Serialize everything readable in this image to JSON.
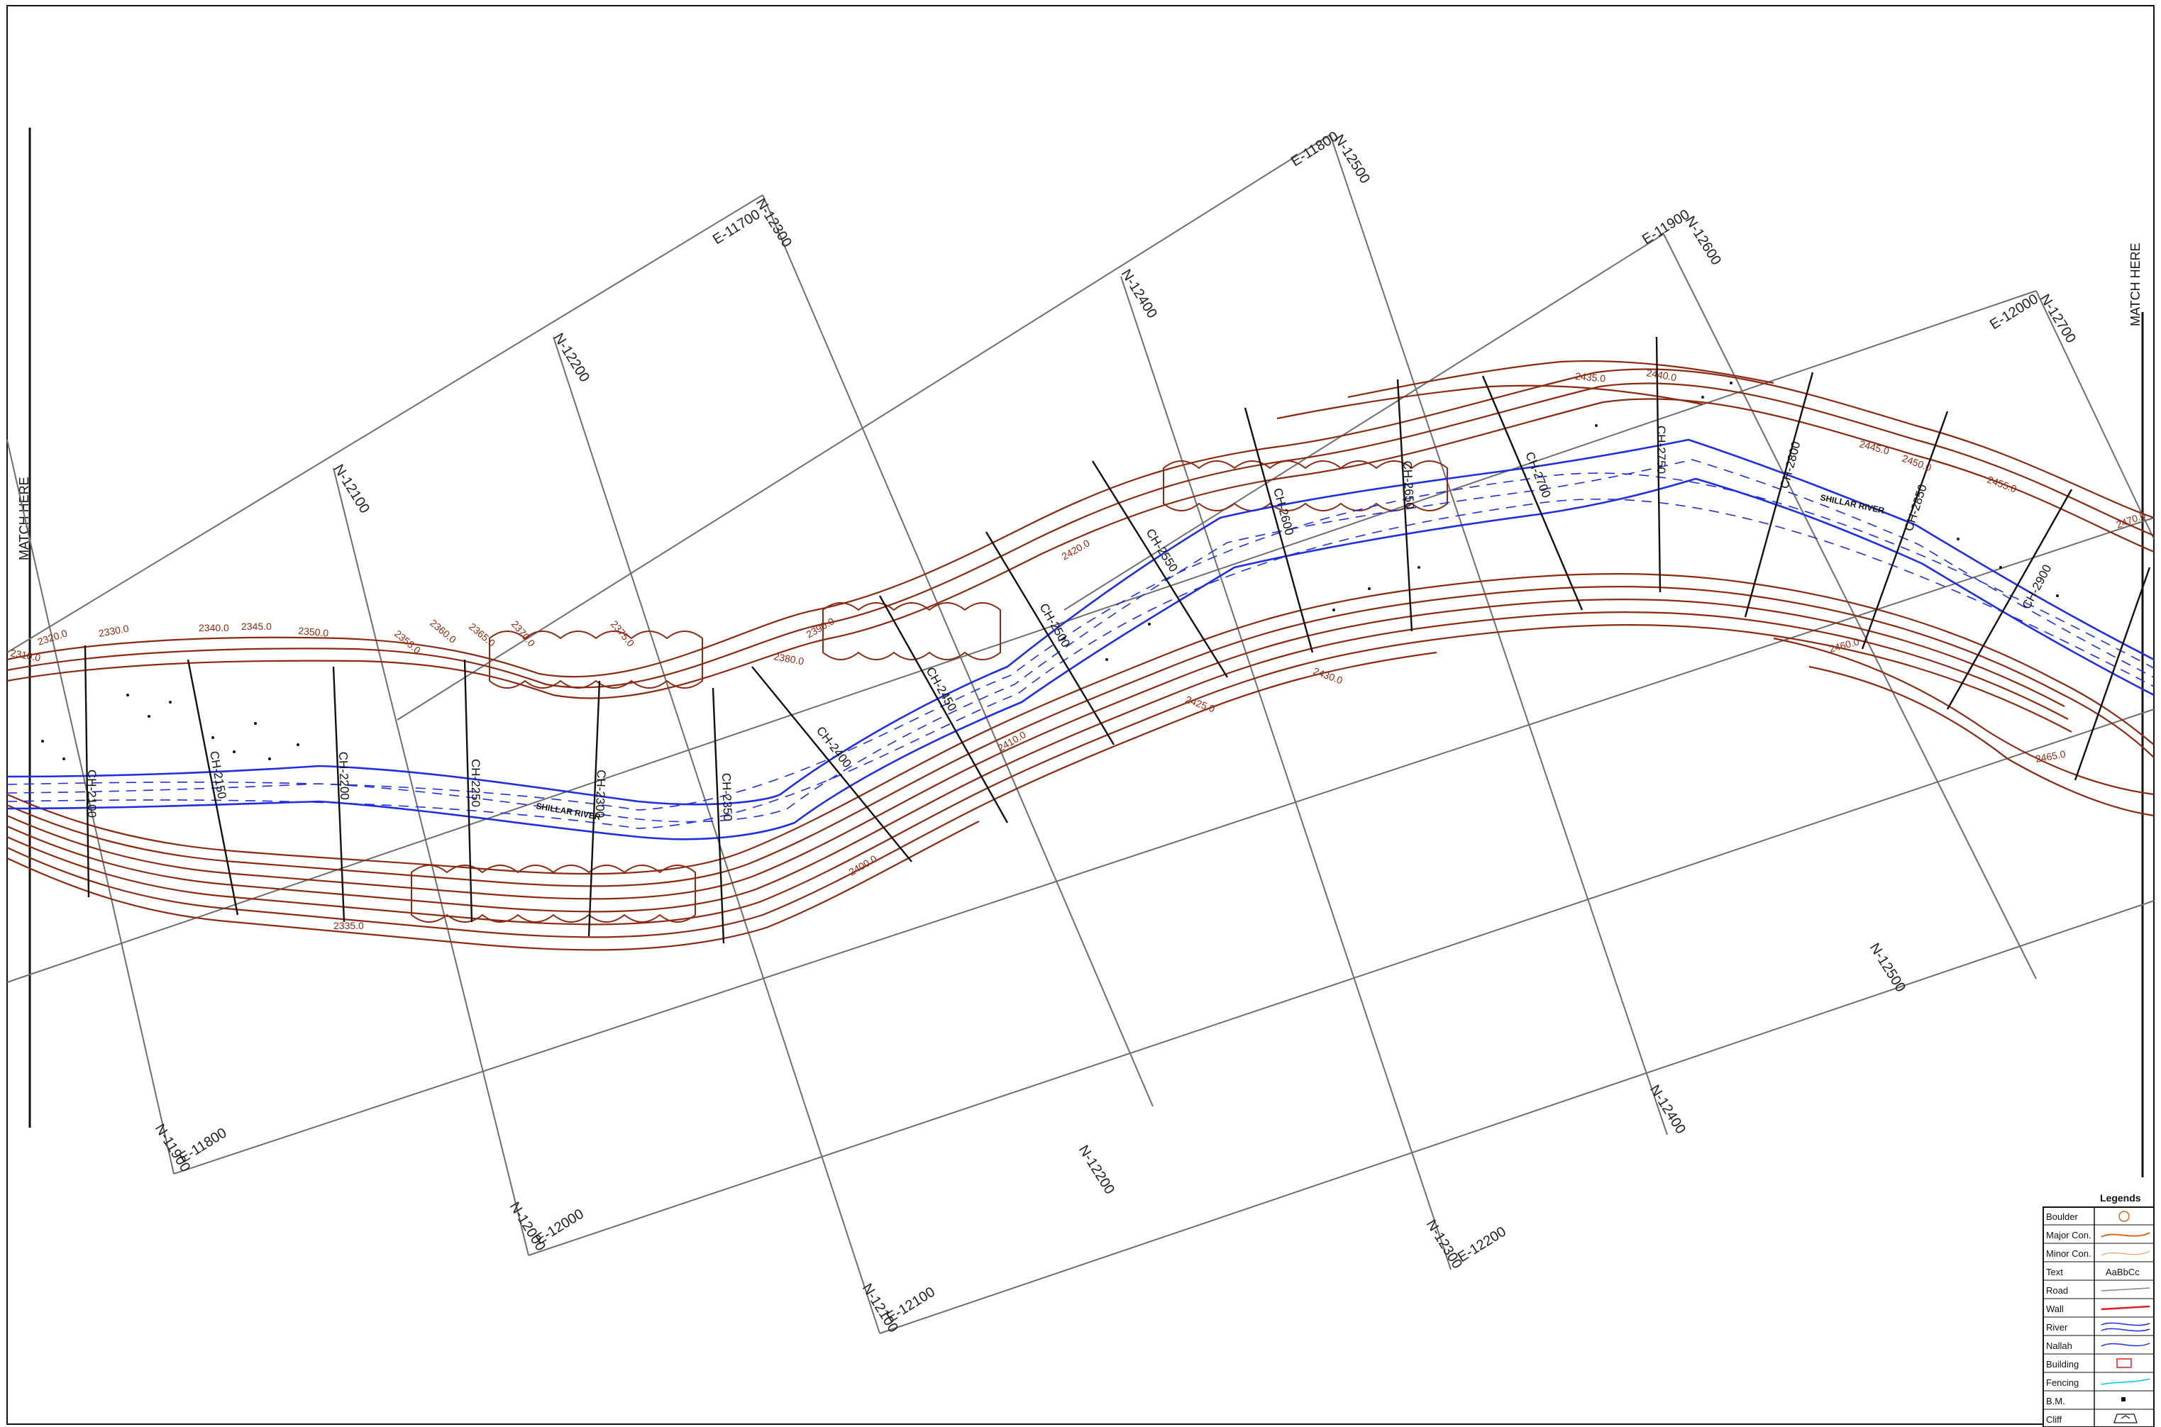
{
  "match_labels": {
    "left": "MATCH HERE",
    "right": "MATCH HERE"
  },
  "grid_labels": [
    "E-11700",
    "N-12300",
    "E-11800",
    "N-12500",
    "E-11900",
    "N-12600",
    "E-12000",
    "N-12700",
    "N-12200",
    "N-12100",
    "N-12400",
    "N-11900",
    "E-11800",
    "N-12000",
    "E-12000",
    "N-12100",
    "E-12100",
    "N-12300",
    "E-12200",
    "N-12200",
    "N-12400",
    "N-12500"
  ],
  "contour_labels": [
    "2310.0",
    "2320.0",
    "2330.0",
    "2335.0",
    "2340.0",
    "2345.0",
    "2350.0",
    "2355.0",
    "2360.0",
    "2365.0",
    "2370.0",
    "2375.0",
    "2380.0",
    "2390.0",
    "2400.0",
    "2410.0",
    "2420.0",
    "2425.0",
    "2430.0",
    "2435.0",
    "2440.0",
    "2445.0",
    "2450.0",
    "2455.0",
    "2460.0",
    "2465.0",
    "2470.0"
  ],
  "section_labels": [
    "CH-2100",
    "CH-2150",
    "CH-2200",
    "CH-2250",
    "CH-2300",
    "CH-2350",
    "CH-2400",
    "CH-2450",
    "CH-2500",
    "CH-2550",
    "CH-2600",
    "CH-2650",
    "CH-2700",
    "CH-2750",
    "CH-2800",
    "CH-2850",
    "CH-2900"
  ],
  "river_name_labels": [
    "SHILLAR RIVER",
    "SHILLAR RIVER"
  ],
  "legend": {
    "title": "Legends",
    "items": [
      {
        "label": "Boulder",
        "symbol": "boulder-icon",
        "color": "#d2691e"
      },
      {
        "label": "Major Con.",
        "symbol": "major-contour-icon",
        "color": "#d2691e"
      },
      {
        "label": "Minor Con.",
        "symbol": "minor-contour-icon",
        "color": "#e8a060"
      },
      {
        "label": "Text",
        "symbol": "text-sample-icon",
        "sample": "AaBbCc"
      },
      {
        "label": "Road",
        "symbol": "road-icon",
        "color": "#888888"
      },
      {
        "label": "Wall",
        "symbol": "wall-icon",
        "color": "#e02020"
      },
      {
        "label": "River",
        "symbol": "river-icon",
        "color": "#1d2fe0"
      },
      {
        "label": "Nallah",
        "symbol": "nallah-icon",
        "color": "#1d2fe0"
      },
      {
        "label": "Building",
        "symbol": "building-icon",
        "color": "#e02020"
      },
      {
        "label": "Fencing",
        "symbol": "fencing-icon",
        "color": "#00c8e8"
      },
      {
        "label": "B.M.",
        "symbol": "benchmark-icon",
        "color": "#111111"
      },
      {
        "label": "Cliff",
        "symbol": "cliff-icon",
        "color": "#111111"
      }
    ]
  }
}
